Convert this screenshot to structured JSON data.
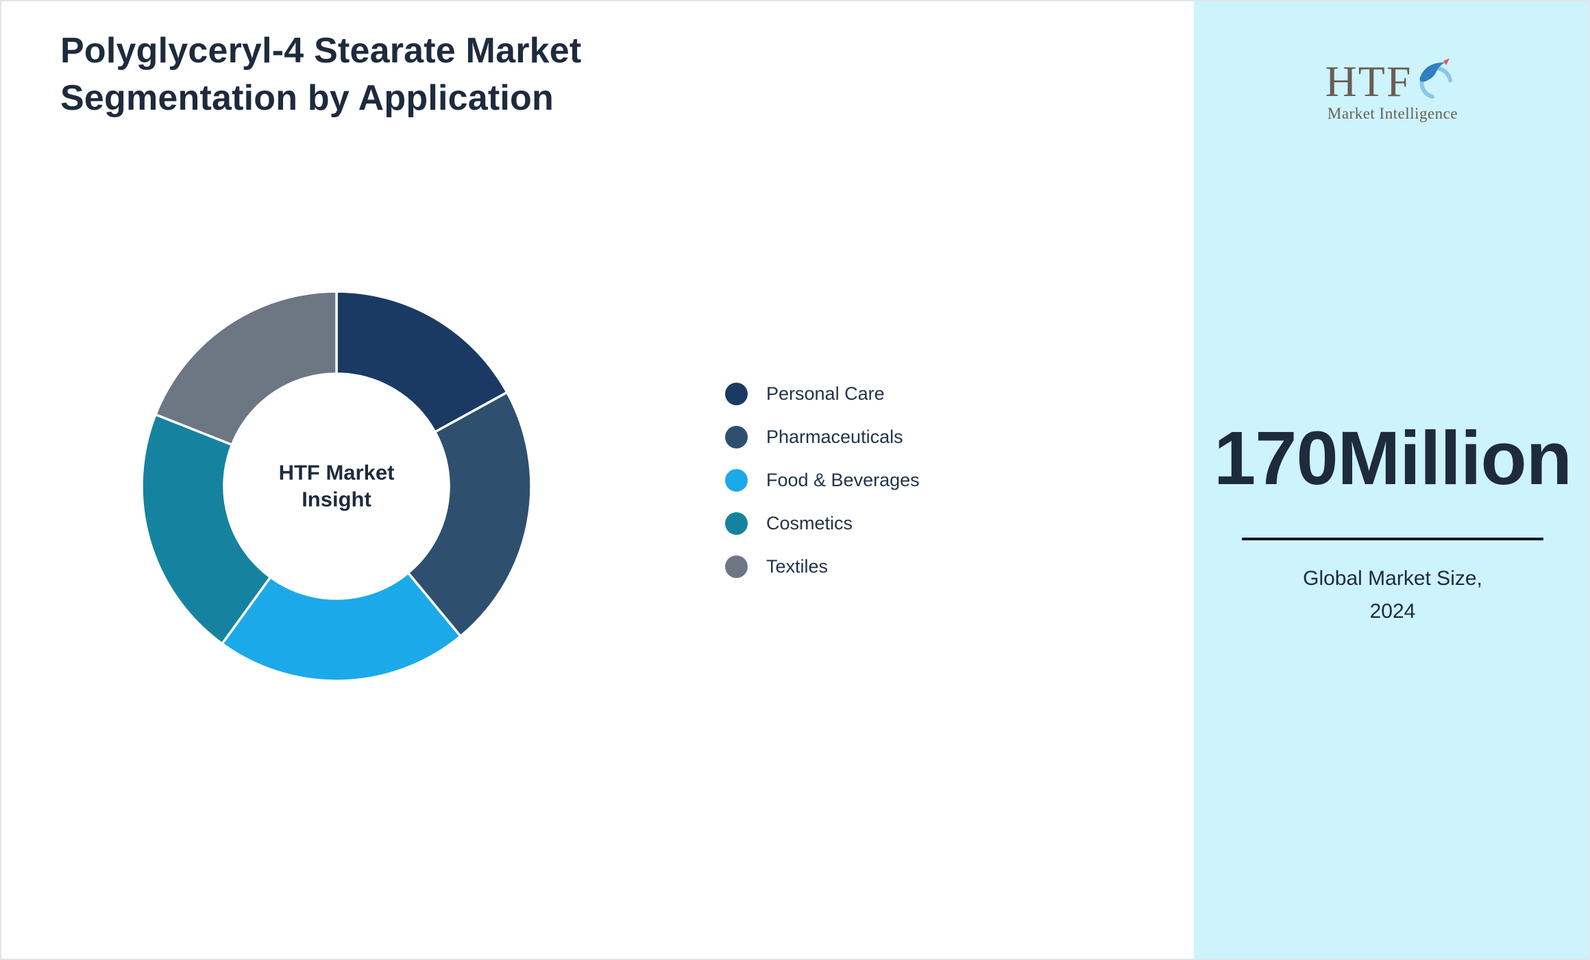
{
  "header": {
    "title": "Polyglyceryl-4 Stearate Market Segmentation by Application",
    "title_lines": [
      "Polyglyceryl-4 Stearate Market",
      "Segmentation by Application"
    ]
  },
  "chart_data": {
    "type": "pie",
    "subtype": "donut",
    "title": "Polyglyceryl-4 Stearate Market Segmentation by Application",
    "center_label": "HTF Market Insight",
    "center_label_lines": [
      "HTF Market",
      "Insight"
    ],
    "legend_position": "right",
    "unit": "percent-estimated-from-arc-angles",
    "segments": [
      {
        "label": "Personal Care",
        "value": 17,
        "color": "#1a3a64"
      },
      {
        "label": "Pharmaceuticals",
        "value": 22,
        "color": "#2f4f6e"
      },
      {
        "label": "Food & Beverages",
        "value": 21,
        "color": "#1ca9ea"
      },
      {
        "label": "Cosmetics",
        "value": 21,
        "color": "#15839f"
      },
      {
        "label": "Textiles",
        "value": 19,
        "color": "#6d7683"
      }
    ]
  },
  "sidebar": {
    "background_color": "#cdf3fc",
    "logo": {
      "text": "HTF",
      "subtext": "Market Intelligence",
      "icon": "dolphin-icon"
    },
    "market_size_value": "170Million",
    "caption_lines": [
      "Global Market Size,",
      "2024"
    ]
  },
  "colors": {
    "title_text": "#1e2b3d",
    "legend_text": "#22344a",
    "divider": "#121c28"
  }
}
